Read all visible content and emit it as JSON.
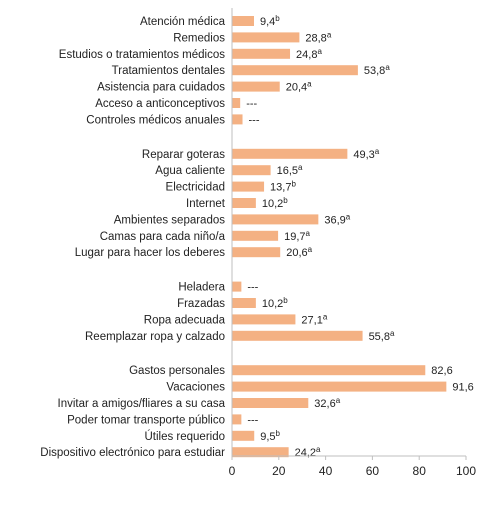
{
  "chart_data": {
    "type": "bar",
    "orientation": "horizontal",
    "bar_color": "#F4B183",
    "axis_color": "#BFBFBF",
    "xlim": [
      0,
      100
    ],
    "xticks": [
      0,
      20,
      40,
      60,
      80,
      100
    ],
    "grid": false,
    "groups": [
      {
        "items": [
          {
            "label": "Atención médica",
            "value": 9.4,
            "display": "9,4",
            "sup": "b"
          },
          {
            "label": "Remedios",
            "value": 28.8,
            "display": "28,8",
            "sup": "a"
          },
          {
            "label": "Estudios o tratamientos médicos",
            "value": 24.8,
            "display": "24,8",
            "sup": "a"
          },
          {
            "label": "Tratamientos dentales",
            "value": 53.8,
            "display": "53,8",
            "sup": "a"
          },
          {
            "label": "Asistencia para cuidados",
            "value": 20.4,
            "display": "20,4",
            "sup": "a"
          },
          {
            "label": "Acceso a anticonceptivos",
            "value": 3.5,
            "display": "---",
            "sup": ""
          },
          {
            "label": "Controles médicos anuales",
            "value": 4.5,
            "display": "---",
            "sup": ""
          }
        ]
      },
      {
        "items": [
          {
            "label": "Reparar goteras",
            "value": 49.3,
            "display": "49,3",
            "sup": "a"
          },
          {
            "label": "Agua caliente",
            "value": 16.5,
            "display": "16,5",
            "sup": "a"
          },
          {
            "label": "Electricidad",
            "value": 13.7,
            "display": "13,7",
            "sup": "b"
          },
          {
            "label": "Internet",
            "value": 10.2,
            "display": "10,2",
            "sup": "b"
          },
          {
            "label": "Ambientes separados",
            "value": 36.9,
            "display": "36,9",
            "sup": "a"
          },
          {
            "label": "Camas para cada niño/a",
            "value": 19.7,
            "display": "19,7",
            "sup": "a"
          },
          {
            "label": "Lugar para hacer los deberes",
            "value": 20.6,
            "display": "20,6",
            "sup": "a"
          }
        ]
      },
      {
        "items": [
          {
            "label": "Heladera",
            "value": 4.0,
            "display": "---",
            "sup": ""
          },
          {
            "label": "Frazadas",
            "value": 10.2,
            "display": "10,2",
            "sup": "b"
          },
          {
            "label": "Ropa adecuada",
            "value": 27.1,
            "display": "27,1",
            "sup": "a"
          },
          {
            "label": "Reemplazar ropa y calzado",
            "value": 55.8,
            "display": "55,8",
            "sup": "a"
          }
        ]
      },
      {
        "items": [
          {
            "label": "Gastos personales",
            "value": 82.6,
            "display": "82,6",
            "sup": ""
          },
          {
            "label": "Vacaciones",
            "value": 91.6,
            "display": "91,6",
            "sup": ""
          },
          {
            "label": "Invitar a amigos/fliares a su casa",
            "value": 32.6,
            "display": "32,6",
            "sup": "a"
          },
          {
            "label": "Poder tomar transporte público",
            "value": 4.0,
            "display": "---",
            "sup": ""
          },
          {
            "label": "Útiles requerido",
            "value": 9.5,
            "display": "9,5",
            "sup": "b"
          },
          {
            "label": "Dispositivo electrónico para estudiar",
            "value": 24.2,
            "display": "24,2",
            "sup": "a"
          }
        ]
      }
    ]
  }
}
